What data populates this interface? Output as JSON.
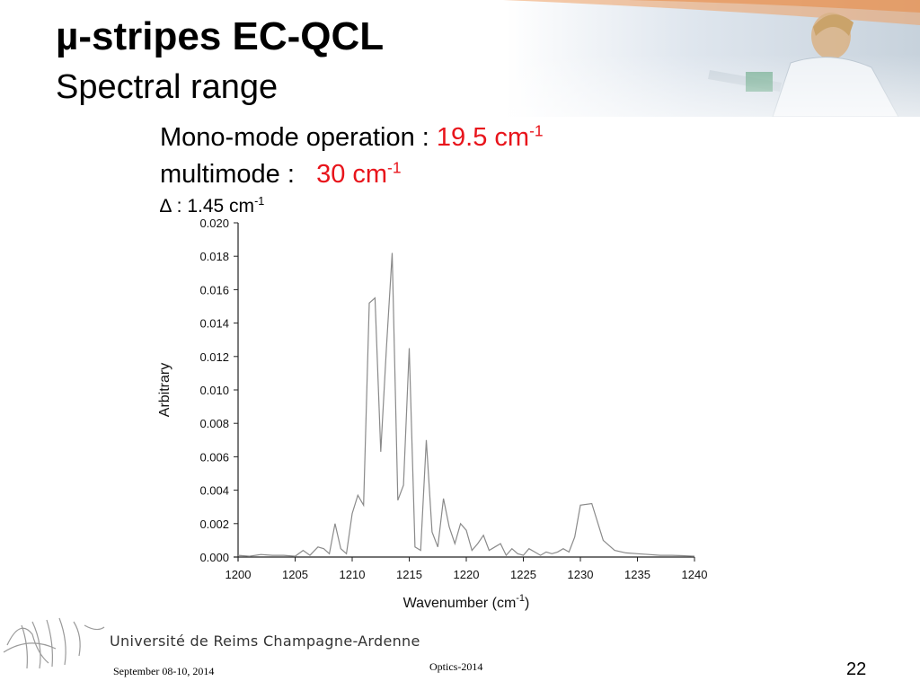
{
  "slide": {
    "title": "µ-stripes EC-QCL",
    "subtitle": "Spectral range",
    "mono_label": "Mono-mode operation : ",
    "mono_value": "19.5 cm",
    "multi_label": "multimode :   ",
    "multi_value": "30 cm",
    "delta_label": "∆ : 1.45 cm",
    "superscript": "-1",
    "accent_color": "#e8141b"
  },
  "footer": {
    "university": "Université de Reims Champagne-Ardenne",
    "date": "September 08-10, 2014",
    "event": "Optics-2014",
    "page_number": "22"
  },
  "chart_data": {
    "type": "line",
    "xlabel": "Wavenumber (cm",
    "xlabel_sup": "-1",
    "xlabel_suffix": ")",
    "ylabel": "Arbitrary",
    "xlim": [
      1200,
      1240
    ],
    "ylim": [
      0,
      0.02
    ],
    "xticks": [
      1200,
      1205,
      1210,
      1215,
      1220,
      1225,
      1230,
      1235,
      1240
    ],
    "yticks": [
      "0.000",
      "0.002",
      "0.004",
      "0.006",
      "0.008",
      "0.010",
      "0.012",
      "0.014",
      "0.016",
      "0.018",
      "0.020"
    ],
    "grid": false,
    "line_color": "#8a8a8a",
    "series": [
      {
        "x": [
          1200,
          1201,
          1202,
          1203,
          1204,
          1205,
          1205.7,
          1206.3,
          1207,
          1207.5,
          1208,
          1208.5,
          1209,
          1209.5,
          1210,
          1210.5,
          1211,
          1211.5,
          1212,
          1212.5,
          1213,
          1213.5,
          1214,
          1214.5,
          1215,
          1215.5,
          1216,
          1216.5,
          1217,
          1217.5,
          1218,
          1218.5,
          1219,
          1219.5,
          1220,
          1220.5,
          1221,
          1221.5,
          1222,
          1222.5,
          1223,
          1223.5,
          1224,
          1224.5,
          1225,
          1225.5,
          1226,
          1226.5,
          1227,
          1227.5,
          1228,
          1228.5,
          1229,
          1229.5,
          1230,
          1231,
          1232,
          1233,
          1234,
          1235,
          1236,
          1237,
          1238,
          1239,
          1240
        ],
        "y": [
          0.0001,
          5e-05,
          0.00015,
          0.0001,
          0.0001,
          5e-05,
          0.0004,
          0.0001,
          0.0006,
          0.0005,
          0.0002,
          0.002,
          0.0005,
          0.0002,
          0.0026,
          0.0037,
          0.0031,
          0.0152,
          0.0155,
          0.0063,
          0.0125,
          0.0182,
          0.0034,
          0.0043,
          0.0125,
          0.0006,
          0.0004,
          0.007,
          0.0015,
          0.0006,
          0.0035,
          0.0018,
          0.0008,
          0.002,
          0.0016,
          0.0004,
          0.0008,
          0.0013,
          0.0004,
          0.0006,
          0.0008,
          0.0001,
          0.0005,
          0.0002,
          0.0001,
          0.0005,
          0.0003,
          0.0001,
          0.0003,
          0.0002,
          0.0003,
          0.0005,
          0.0003,
          0.0012,
          0.0031,
          0.0032,
          0.001,
          0.0004,
          0.00025,
          0.0002,
          0.00015,
          0.0001,
          0.0001,
          8e-05,
          5e-05
        ]
      }
    ]
  }
}
